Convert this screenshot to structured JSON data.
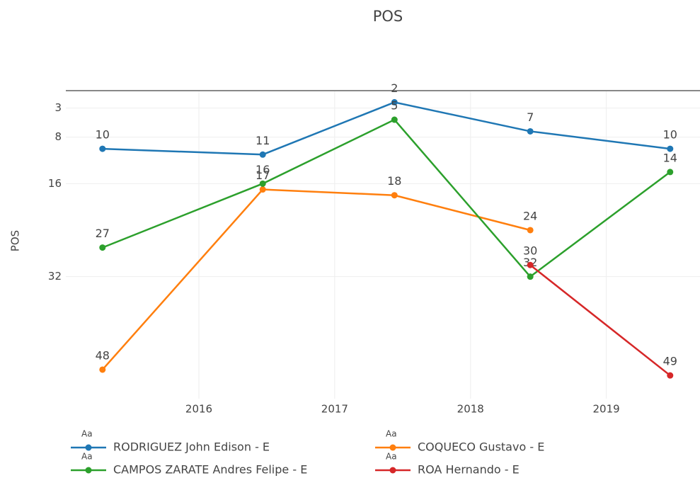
{
  "chart_data": {
    "type": "line",
    "title": "POS",
    "y_label": "POS",
    "x": [
      2015.29,
      2016.47,
      2017.44,
      2018.44,
      2019.47
    ],
    "xlim": [
      2015.02,
      2019.69
    ],
    "xticks": [
      2016,
      2017,
      2018,
      2019
    ],
    "ylim": [
      0,
      53
    ],
    "y_reversed": true,
    "yticks": [
      3,
      8,
      16,
      32
    ],
    "grid": true,
    "zeroline": true,
    "legend_marker_text": "Aa",
    "series": [
      {
        "name": "RODRIGUEZ John Edison - E",
        "color": "#1f77b4",
        "values": [
          10,
          11,
          2,
          7,
          10
        ]
      },
      {
        "name": "COQUECO Gustavo - E",
        "color": "#ff7f0e",
        "values": [
          48,
          17,
          18,
          24,
          null
        ]
      },
      {
        "name": "CAMPOS ZARATE Andres Felipe - E",
        "color": "#2ca02c",
        "values": [
          27,
          16,
          5,
          32,
          14
        ]
      },
      {
        "name": "ROA Hernando - E",
        "color": "#d62728",
        "values": [
          null,
          null,
          null,
          30,
          49
        ]
      }
    ]
  }
}
